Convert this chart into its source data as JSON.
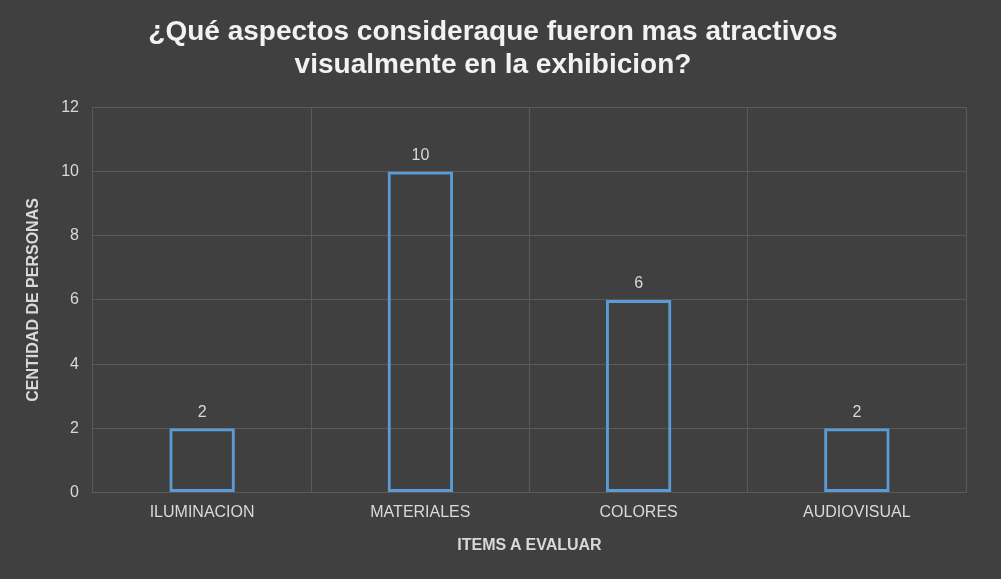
{
  "chart_data": {
    "type": "bar",
    "title": "¿Qué aspectos consideraque fueron mas atractivos visualmente en la exhibicion?",
    "xlabel": "ITEMS A EVALUAR",
    "ylabel": "CENTIDAD DE PERSONAS",
    "categories": [
      "ILUMINACION",
      "MATERIALES",
      "COLORES",
      "AUDIOVISUAL"
    ],
    "values": [
      2,
      10,
      6,
      2
    ],
    "color": "#5b9bd5",
    "ylim": [
      0,
      12
    ],
    "yticks": [
      0,
      2,
      4,
      6,
      8,
      10,
      12
    ],
    "grid": true,
    "data_labels": true,
    "legend": false
  }
}
